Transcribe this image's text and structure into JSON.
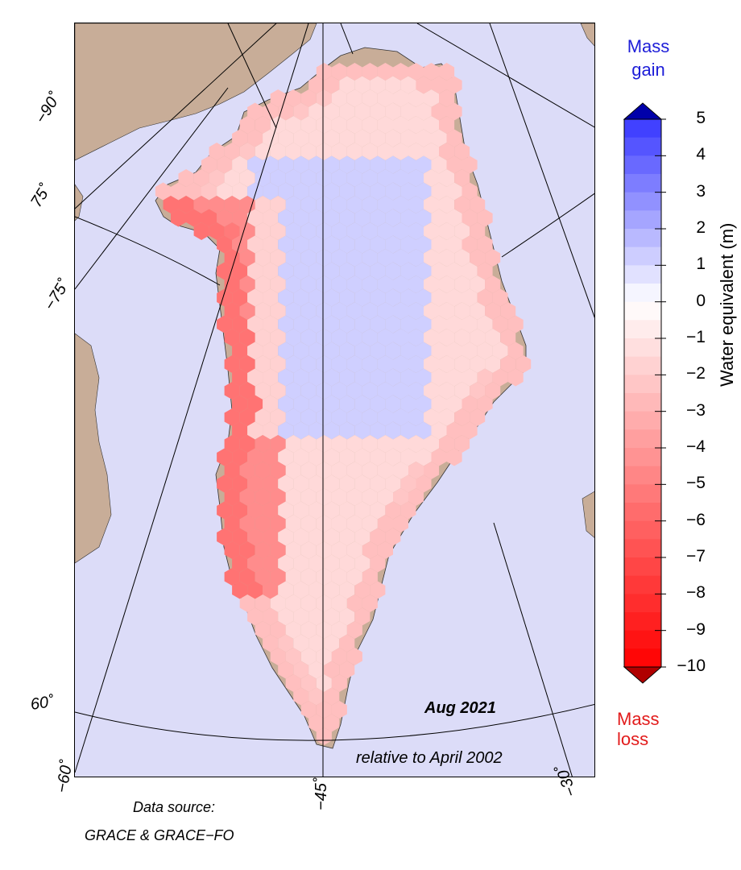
{
  "map": {
    "date": "Aug 2021",
    "reference": "relative to April 2002",
    "source_line1": "Data source:",
    "source_line2": "GRACE & GRACE−FO",
    "lat_labels": [
      "−90˚",
      "75˚",
      "−75˚",
      "60˚"
    ],
    "lon_labels": [
      "−60˚",
      "−45˚",
      "−30˚"
    ],
    "colors": {
      "ocean": "#dcdcf8",
      "land": "#c8ad98",
      "gain_max": "#0000aa",
      "loss_max": "#b00000",
      "neutral": "#ffffff"
    }
  },
  "colorbar": {
    "gain_label": "Mass gain",
    "loss_label": "Mass loss",
    "axis_label": "Water equivalent (m)",
    "ticks": [
      "5",
      "4",
      "3",
      "2",
      "1",
      "0",
      "−1",
      "−2",
      "−3",
      "−4",
      "−5",
      "−6",
      "−7",
      "−8",
      "−9",
      "−10"
    ],
    "min": -10,
    "max": 5
  }
}
